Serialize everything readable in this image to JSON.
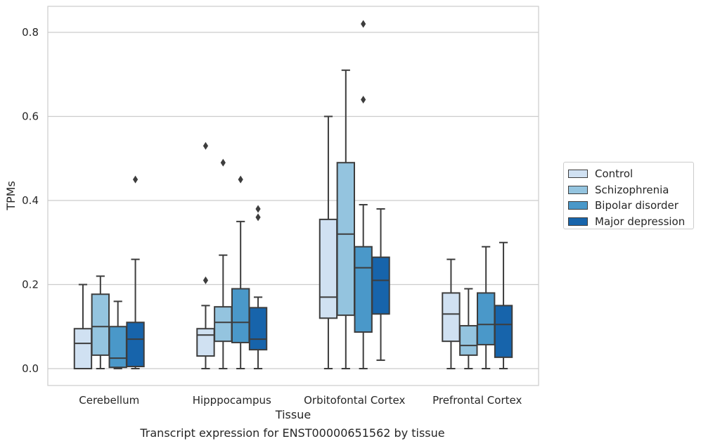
{
  "caption": "Transcript expression for ENST00000651562 by tissue",
  "chart_data": {
    "type": "box",
    "xlabel": "Tissue",
    "ylabel": "TPMs",
    "ylim": [
      -0.04,
      0.862
    ],
    "yticks": [
      0.0,
      0.2,
      0.4,
      0.6,
      0.8
    ],
    "ytick_labels": [
      "0.0",
      "0.2",
      "0.4",
      "0.6",
      "0.8"
    ],
    "grid": "horizontal",
    "legend_position": "right-outside",
    "categories": [
      "Cerebellum",
      "Hipppocampus",
      "Orbitofontal Cortex",
      "Prefrontal Cortex"
    ],
    "series": [
      {
        "name": "Control",
        "color": "#d0e1f2",
        "boxes": [
          {
            "whislo": 0.0,
            "q1": 0.0,
            "med": 0.06,
            "q3": 0.095,
            "whishi": 0.2,
            "fliers": []
          },
          {
            "whislo": 0.0,
            "q1": 0.03,
            "med": 0.08,
            "q3": 0.095,
            "whishi": 0.15,
            "fliers": [
              0.53,
              0.21
            ]
          },
          {
            "whislo": 0.0,
            "q1": 0.12,
            "med": 0.17,
            "q3": 0.355,
            "whishi": 0.6,
            "fliers": []
          },
          {
            "whislo": 0.0,
            "q1": 0.065,
            "med": 0.13,
            "q3": 0.18,
            "whishi": 0.26,
            "fliers": []
          }
        ]
      },
      {
        "name": "Schizophrenia",
        "color": "#94c4df",
        "boxes": [
          {
            "whislo": 0.0,
            "q1": 0.032,
            "med": 0.1,
            "q3": 0.177,
            "whishi": 0.22,
            "fliers": []
          },
          {
            "whislo": 0.0,
            "q1": 0.065,
            "med": 0.11,
            "q3": 0.147,
            "whishi": 0.27,
            "fliers": [
              0.49
            ]
          },
          {
            "whislo": 0.0,
            "q1": 0.127,
            "med": 0.32,
            "q3": 0.49,
            "whishi": 0.71,
            "fliers": []
          },
          {
            "whislo": 0.0,
            "q1": 0.032,
            "med": 0.055,
            "q3": 0.102,
            "whishi": 0.19,
            "fliers": []
          }
        ]
      },
      {
        "name": "Bipolar disorder",
        "color": "#4a98c9",
        "boxes": [
          {
            "whislo": 0.0,
            "q1": 0.003,
            "med": 0.025,
            "q3": 0.1,
            "whishi": 0.16,
            "fliers": []
          },
          {
            "whislo": 0.0,
            "q1": 0.062,
            "med": 0.11,
            "q3": 0.19,
            "whishi": 0.35,
            "fliers": [
              0.45
            ]
          },
          {
            "whislo": 0.0,
            "q1": 0.087,
            "med": 0.24,
            "q3": 0.29,
            "whishi": 0.39,
            "fliers": [
              0.82,
              0.64
            ]
          },
          {
            "whislo": 0.0,
            "q1": 0.057,
            "med": 0.105,
            "q3": 0.18,
            "whishi": 0.29,
            "fliers": []
          }
        ]
      },
      {
        "name": "Major depression",
        "color": "#1764ab",
        "boxes": [
          {
            "whislo": 0.0,
            "q1": 0.005,
            "med": 0.07,
            "q3": 0.11,
            "whishi": 0.26,
            "fliers": [
              0.45
            ]
          },
          {
            "whislo": 0.0,
            "q1": 0.045,
            "med": 0.07,
            "q3": 0.145,
            "whishi": 0.17,
            "fliers": [
              0.38,
              0.36
            ]
          },
          {
            "whislo": 0.02,
            "q1": 0.13,
            "med": 0.21,
            "q3": 0.265,
            "whishi": 0.38,
            "fliers": []
          },
          {
            "whislo": 0.0,
            "q1": 0.027,
            "med": 0.105,
            "q3": 0.15,
            "whishi": 0.3,
            "fliers": []
          }
        ]
      }
    ]
  }
}
